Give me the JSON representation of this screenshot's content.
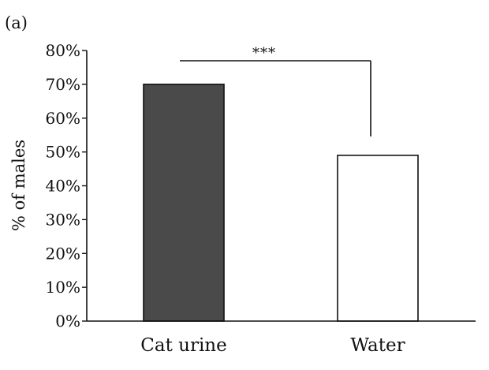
{
  "panel_label": "(a)",
  "chart_data": {
    "type": "bar",
    "title": "",
    "categories": [
      "Cat urine",
      "Water"
    ],
    "values": [
      70,
      49
    ],
    "ylabel": "% of males",
    "xlabel": "",
    "ylim": [
      0,
      80
    ],
    "yticks": [
      0,
      10,
      20,
      30,
      40,
      50,
      60,
      70,
      80
    ],
    "ytick_labels": [
      "0%",
      "10%",
      "20%",
      "30%",
      "40%",
      "50%",
      "60%",
      "70%",
      "80%"
    ],
    "grid": false,
    "legend": "none",
    "bar_colors": [
      "#4a4a4a",
      "#ffffff"
    ],
    "annotations": [
      {
        "type": "significance-bracket",
        "text": "***",
        "between": [
          "Cat urine",
          "Water"
        ]
      }
    ]
  }
}
